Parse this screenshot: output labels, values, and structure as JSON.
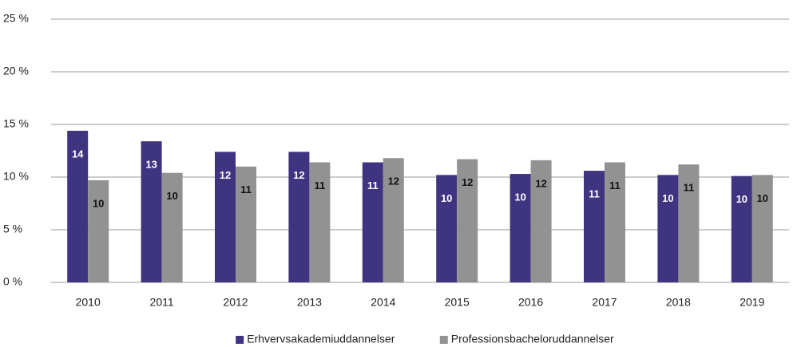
{
  "chart_data": {
    "type": "bar",
    "categories": [
      "2010",
      "2011",
      "2012",
      "2013",
      "2014",
      "2015",
      "2016",
      "2017",
      "2018",
      "2019"
    ],
    "series": [
      {
        "name": "Erhvervsakademiuddannelser",
        "color": "#3f3480",
        "values": [
          14.4,
          13.4,
          12.4,
          12.4,
          11.4,
          10.2,
          10.3,
          10.6,
          10.2,
          10.1
        ],
        "value_labels": [
          "14",
          "13",
          "12",
          "12",
          "11",
          "10",
          "10",
          "11",
          "10",
          "10"
        ]
      },
      {
        "name": "Professionsbacheloruddannelser",
        "color": "#929292",
        "values": [
          9.7,
          10.4,
          11.0,
          11.4,
          11.8,
          11.7,
          11.6,
          11.4,
          11.2,
          10.2
        ],
        "value_labels": [
          "10",
          "10",
          "11",
          "11",
          "12",
          "12",
          "12",
          "11",
          "11",
          "10"
        ]
      }
    ],
    "ylim": [
      0,
      25
    ],
    "yticks": [
      {
        "value": 0,
        "label": "0 %"
      },
      {
        "value": 5,
        "label": "5 %"
      },
      {
        "value": 10,
        "label": "10 %"
      },
      {
        "value": 15,
        "label": "15 %"
      },
      {
        "value": 20,
        "label": "20 %"
      },
      {
        "value": 25,
        "label": "25 %"
      }
    ],
    "grid": true,
    "legend": "bottom"
  }
}
